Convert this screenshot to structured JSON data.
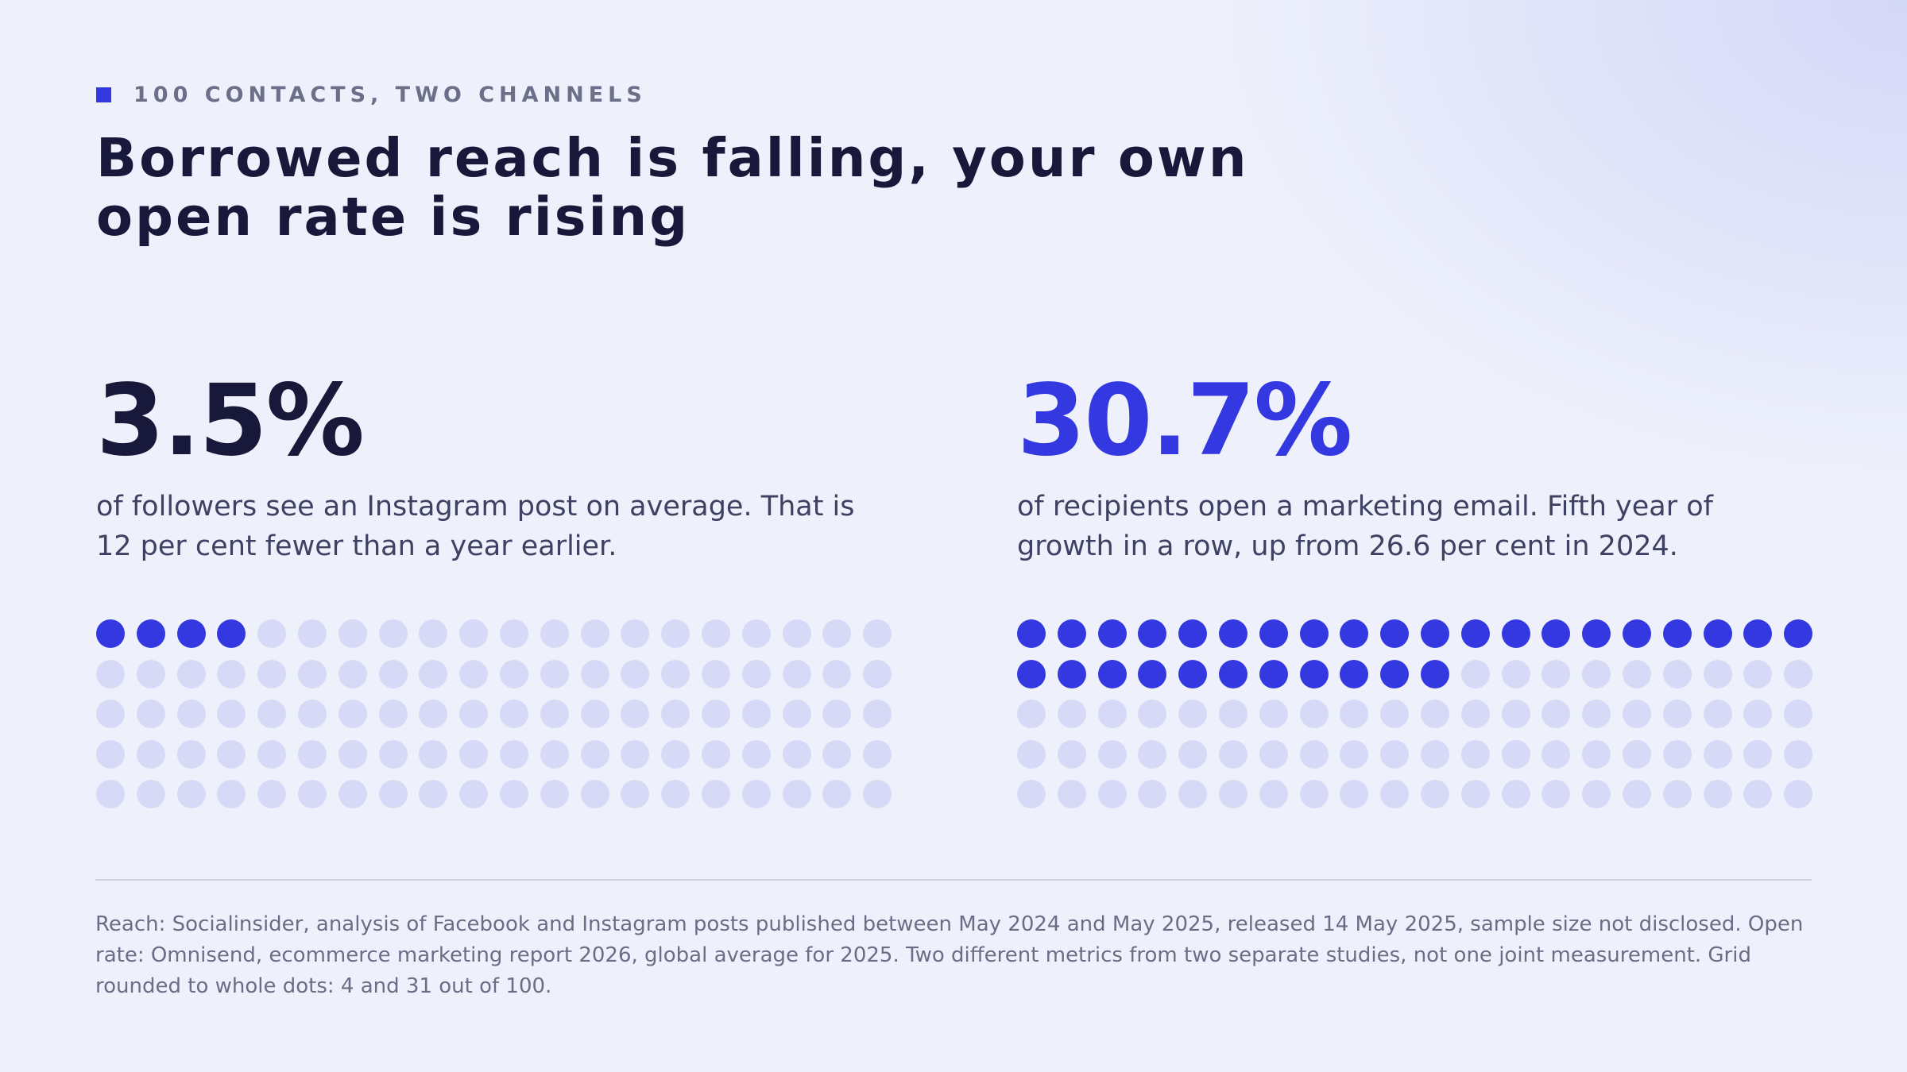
{
  "eyebrow": "100 CONTACTS, TWO CHANNELS",
  "title": "Borrowed reach is falling, your own open rate is rising",
  "stats": {
    "left": {
      "value_text": "3.5%",
      "description": "of followers see an Instagram post on average. That is 12 per cent fewer than a year earlier."
    },
    "right": {
      "value_text": "30.7%",
      "description": "of recipients open a marketing email. Fifth year of growth in a row, up from 26.6 per cent in 2024."
    }
  },
  "footnote": "Reach: Socialinsider, analysis of Facebook and Instagram posts published between May 2024 and May 2025, released 14 May 2025, sample size not disclosed. Open rate: Omnisend, ecommerce marketing report 2026, global average for 2025. Two different metrics from two separate studies, not one joint measurement. Grid rounded to whole dots: 4 and 31 out of 100.",
  "colors": {
    "accent": "#3338e0",
    "dot_empty": "#d7daf6",
    "dark": "#17183a"
  },
  "chart_data": [
    {
      "type": "waffle",
      "total": 100,
      "value": 3.5,
      "filled_dots": 4,
      "label": "3.5%"
    },
    {
      "type": "waffle",
      "total": 100,
      "value": 30.7,
      "filled_dots": 31,
      "label": "30.7%"
    }
  ]
}
